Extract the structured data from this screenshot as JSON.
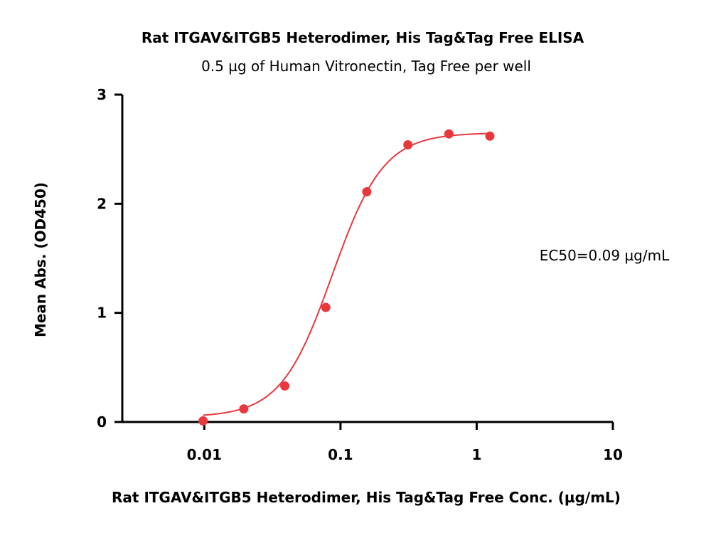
{
  "chart_data": {
    "type": "scatter",
    "title": "Rat ITGAV&ITGB5 Heterodimer, His Tag&Tag Free ELISA",
    "subtitle": "0.5 µg of Human Vitronectin, Tag Free per well",
    "xlabel": "Rat ITGAV&ITGB5 Heterodimer, His Tag&Tag Free Conc. (µg/mL)",
    "ylabel": "Mean Abs. (OD450)",
    "xscale": "log",
    "xlim": [
      0.0025,
      10
    ],
    "ylim": [
      0,
      3
    ],
    "xticks": [
      "0.01",
      "0.1",
      "1",
      "10"
    ],
    "yticks": [
      "0",
      "1",
      "2",
      "3"
    ],
    "grid": false,
    "annotation": "EC50=0.09 µg/mL",
    "color": "#e8383d",
    "series": [
      {
        "x": [
          0.0098,
          0.0195,
          0.039,
          0.078,
          0.156,
          0.3125,
          0.625,
          1.25
        ],
        "y": [
          0.01,
          0.12,
          0.33,
          1.05,
          2.11,
          2.54,
          2.64,
          2.62
        ],
        "fit": "4PL sigmoid curve"
      }
    ]
  }
}
